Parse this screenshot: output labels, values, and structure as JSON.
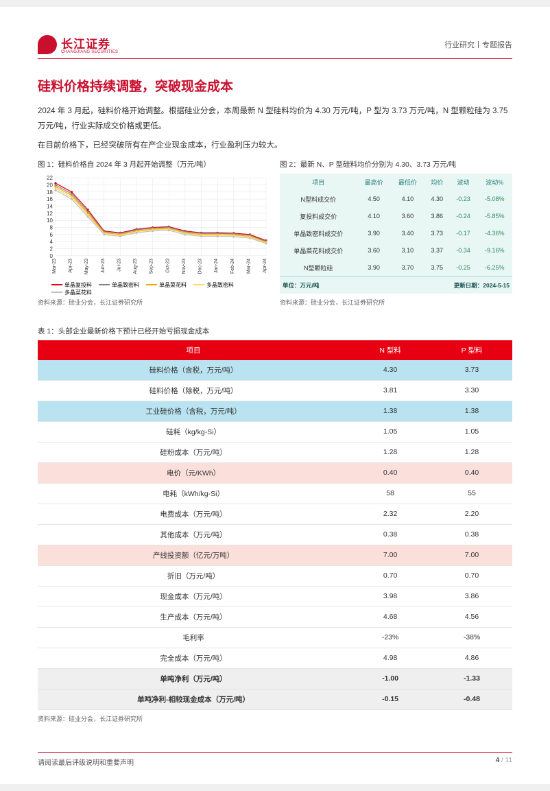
{
  "header": {
    "logo_cn": "长江证券",
    "logo_en": "CHANGJIANG SECURITIES",
    "right": "行业研究丨专题报告"
  },
  "section_title": "硅料价格持续调整，突破现金成本",
  "para1": "2024 年 3 月起，硅料价格开始调整。根据硅业分会，本周最新 N 型硅料均价为 4.30 万元/吨，P 型为 3.73 万元/吨，N 型颗粒硅为 3.75 万元/吨，行业实际成交价格或更低。",
  "para2": "在目前价格下，已经突破所有在产企业现金成本，行业盈利压力较大。",
  "fig1": {
    "caption": "图 1：硅料价格自 2024 年 3 月起开始调整（万元/吨）",
    "source": "资料来源：硅业分会，长江证券研究所",
    "type": "line",
    "x_labels": [
      "Mar-23",
      "Apr-23",
      "May-23",
      "Jun-23",
      "Jul-23",
      "Aug-23",
      "Sep-23",
      "Oct-23",
      "Nov-23",
      "Dec-23",
      "Jan-24",
      "Feb-24",
      "Mar-24",
      "Apr-24"
    ],
    "ylim": [
      0,
      22
    ],
    "ytick_step": 2,
    "grid_color": "#e0e0e0",
    "series": [
      {
        "name": "单晶复投料",
        "color": "#e60012",
        "vals": [
          20.5,
          18.0,
          13.0,
          7.0,
          6.5,
          7.5,
          8.0,
          8.2,
          7.0,
          6.5,
          6.5,
          6.4,
          6.0,
          4.3
        ]
      },
      {
        "name": "单晶致密料",
        "color": "#808080",
        "vals": [
          20.0,
          17.5,
          12.5,
          6.8,
          6.3,
          7.3,
          7.8,
          8.0,
          6.8,
          6.3,
          6.3,
          6.2,
          5.8,
          4.1
        ]
      },
      {
        "name": "单晶菜花料",
        "color": "#f7a600",
        "vals": [
          19.5,
          17.0,
          12.0,
          6.5,
          6.0,
          7.0,
          7.5,
          7.7,
          6.5,
          6.0,
          6.0,
          5.9,
          5.5,
          3.9
        ]
      },
      {
        "name": "多晶致密料",
        "color": "#ffd966",
        "vals": [
          19.0,
          16.5,
          11.5,
          6.3,
          5.8,
          6.8,
          7.3,
          7.5,
          6.3,
          5.8,
          5.8,
          5.7,
          5.3,
          3.7
        ]
      },
      {
        "name": "多晶菜花料",
        "color": "#bfbfbf",
        "vals": [
          18.5,
          16.0,
          11.0,
          6.0,
          5.5,
          6.5,
          7.0,
          7.2,
          6.0,
          5.5,
          5.5,
          5.4,
          5.0,
          3.5
        ]
      }
    ]
  },
  "fig2": {
    "caption": "图 2：最新 N、P 型硅料均价分别为 4.30、3.73 万元/吨",
    "source": "资料来源：硅业分会，长江证券研究所",
    "headers": [
      "项目",
      "最高价",
      "最低价",
      "均价",
      "波动",
      "波动%"
    ],
    "rows": [
      [
        "N型料成交价",
        "4.50",
        "4.10",
        "4.30",
        "-0.23",
        "-5.08%"
      ],
      [
        "复投料成交价",
        "4.10",
        "3.60",
        "3.86",
        "-0.24",
        "-5.85%"
      ],
      [
        "单晶致密料成交价",
        "3.90",
        "3.40",
        "3.73",
        "-0.17",
        "-4.36%"
      ],
      [
        "单晶菜花料成交价",
        "3.60",
        "3.10",
        "3.37",
        "-0.34",
        "-9.16%"
      ],
      [
        "N型颗粒硅",
        "3.90",
        "3.70",
        "3.75",
        "-0.25",
        "-6.25%"
      ]
    ],
    "footer_left": "单位：万元/吨",
    "footer_right": "更新日期：",
    "footer_date": "2024-5-15"
  },
  "table1": {
    "caption": "表 1：头部企业最新价格下预计已经开始亏损现金成本",
    "source": "资料来源：硅业分会，长江证券研究所",
    "headers": [
      "项目",
      "N 型料",
      "P 型料"
    ],
    "rows": [
      {
        "cells": [
          "硅料价格（含税，万元/吨）",
          "4.30",
          "3.73"
        ],
        "cls": "row-blue"
      },
      {
        "cells": [
          "硅料价格（除税，万元/吨）",
          "3.81",
          "3.30"
        ],
        "cls": ""
      },
      {
        "cells": [
          "工业硅价格（含税，万元/吨）",
          "1.38",
          "1.38"
        ],
        "cls": "row-blue"
      },
      {
        "cells": [
          "硅耗（kg/kg-Si）",
          "1.05",
          "1.05"
        ],
        "cls": ""
      },
      {
        "cells": [
          "硅粉成本（万元/吨）",
          "1.28",
          "1.28"
        ],
        "cls": ""
      },
      {
        "cells": [
          "电价（元/KWh）",
          "0.40",
          "0.40"
        ],
        "cls": "row-pink"
      },
      {
        "cells": [
          "电耗（kWh/kg-Si）",
          "58",
          "55"
        ],
        "cls": ""
      },
      {
        "cells": [
          "电费成本（万元/吨）",
          "2.32",
          "2.20"
        ],
        "cls": ""
      },
      {
        "cells": [
          "其他成本（万元/吨）",
          "0.38",
          "0.38"
        ],
        "cls": ""
      },
      {
        "cells": [
          "产线投资额（亿元/万吨）",
          "7.00",
          "7.00"
        ],
        "cls": "row-pink"
      },
      {
        "cells": [
          "折旧（万元/吨）",
          "0.70",
          "0.70"
        ],
        "cls": ""
      },
      {
        "cells": [
          "现金成本（万元/吨）",
          "3.98",
          "3.86"
        ],
        "cls": ""
      },
      {
        "cells": [
          "生产成本（万元/吨）",
          "4.68",
          "4.56"
        ],
        "cls": ""
      },
      {
        "cells": [
          "毛利率",
          "-23%",
          "-38%"
        ],
        "cls": ""
      },
      {
        "cells": [
          "完全成本（万元/吨）",
          "4.98",
          "4.86"
        ],
        "cls": ""
      },
      {
        "cells": [
          "单吨净利（万元/吨）",
          "-1.00",
          "-1.33"
        ],
        "cls": "row-bold"
      },
      {
        "cells": [
          "单吨净利-相较现金成本（万元/吨）",
          "-0.15",
          "-0.48"
        ],
        "cls": "row-bold"
      }
    ]
  },
  "footer": {
    "left": "请阅读最后评级说明和重要声明",
    "page": "4",
    "total": " / 11"
  }
}
